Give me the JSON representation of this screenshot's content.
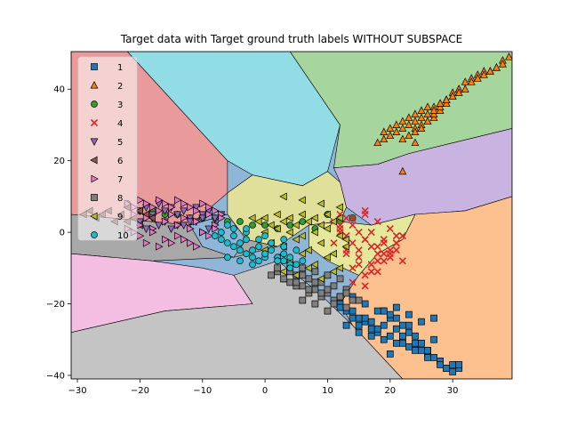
{
  "chart_data": {
    "type": "scatter",
    "title": "Target data with Target ground truth labels WITHOUT SUBSPACE",
    "xlabel": "",
    "ylabel": "",
    "xlim": [
      -31,
      39.5
    ],
    "ylim": [
      -41,
      50.5
    ],
    "xticks": [
      -30,
      -20,
      -10,
      0,
      10,
      20,
      30
    ],
    "yticks": [
      -40,
      -20,
      0,
      20,
      40
    ],
    "xtick_labels": [
      "−30",
      "−20",
      "−10",
      "0",
      "10",
      "20",
      "30"
    ],
    "ytick_labels": [
      "−40",
      "−20",
      "0",
      "20",
      "40"
    ],
    "grid": false,
    "legend_placement": "top-left",
    "regions": [
      {
        "class": "1",
        "color": "#8fb6d6",
        "points": [
          [
            -31,
            50.5
          ],
          [
            39.5,
            50.5
          ],
          [
            39.5,
            -41
          ],
          [
            -31,
            -41
          ]
        ]
      },
      {
        "class": "1",
        "color": "#e99b9b",
        "points": [
          [
            -31,
            50.5
          ],
          [
            -22,
            50.5
          ],
          [
            -6,
            20
          ],
          [
            -6,
            11
          ],
          [
            -12,
            2
          ],
          [
            -31,
            5
          ]
        ]
      },
      {
        "class": "4",
        "color": "#92dce6",
        "points": [
          [
            -22,
            50.5
          ],
          [
            4,
            50.5
          ],
          [
            12,
            30
          ],
          [
            10,
            17
          ],
          [
            6,
            13
          ],
          [
            -2,
            16
          ],
          [
            -6,
            20
          ]
        ]
      },
      {
        "class": "2",
        "color": "#a6d59d",
        "points": [
          [
            4,
            50.5
          ],
          [
            39.5,
            50.5
          ],
          [
            39.5,
            29
          ],
          [
            23,
            22
          ],
          [
            18,
            19
          ],
          [
            11,
            18
          ],
          [
            12,
            30
          ]
        ]
      },
      {
        "class": "9",
        "color": "#c9b3e0",
        "points": [
          [
            11,
            18
          ],
          [
            18,
            19
          ],
          [
            23,
            22
          ],
          [
            39.5,
            29
          ],
          [
            39.5,
            10
          ],
          [
            32,
            6
          ],
          [
            24,
            5
          ],
          [
            17,
            2
          ],
          [
            13,
            7
          ],
          [
            12,
            14
          ]
        ]
      },
      {
        "class": "5",
        "color": "#e0e09a",
        "points": [
          [
            -6,
            11
          ],
          [
            -2,
            16
          ],
          [
            6,
            13
          ],
          [
            10,
            17
          ],
          [
            12,
            14
          ],
          [
            13,
            7
          ],
          [
            12,
            3
          ],
          [
            7,
            2
          ],
          [
            2,
            -4
          ],
          [
            -3,
            -2
          ],
          [
            -6,
            5
          ]
        ]
      },
      {
        "class": "6",
        "color": "#a8a8a8",
        "points": [
          [
            -31,
            5
          ],
          [
            -12,
            2
          ],
          [
            -6,
            5
          ],
          [
            -3,
            -2
          ],
          [
            2,
            -4
          ],
          [
            -5,
            -7
          ],
          [
            -18,
            -8
          ],
          [
            -31,
            -6
          ]
        ]
      },
      {
        "class": "7",
        "color": "#f4bde2",
        "points": [
          [
            -31,
            -6
          ],
          [
            -18,
            -8
          ],
          [
            -10,
            -10
          ],
          [
            -5,
            -12
          ],
          [
            -2,
            -20
          ],
          [
            -16,
            -22
          ],
          [
            -31,
            -28
          ]
        ]
      },
      {
        "class": "8",
        "color": "#c4c4c4",
        "points": [
          [
            -31,
            -28
          ],
          [
            -16,
            -22
          ],
          [
            -2,
            -20
          ],
          [
            -5,
            -12
          ],
          [
            2,
            -8
          ],
          [
            8,
            -16
          ],
          [
            14,
            -26
          ],
          [
            22,
            -41
          ],
          [
            -31,
            -41
          ]
        ]
      },
      {
        "class": "3",
        "color": "#fdc08f",
        "points": [
          [
            39.5,
            10
          ],
          [
            32,
            6
          ],
          [
            24,
            5
          ],
          [
            22,
            -2
          ],
          [
            18,
            -6
          ],
          [
            15,
            -12
          ],
          [
            12,
            -20
          ],
          [
            14,
            -26
          ],
          [
            22,
            -41
          ],
          [
            39.5,
            -41
          ]
        ]
      },
      {
        "class": "4",
        "color": "#e5e79b",
        "points": [
          [
            12,
            3
          ],
          [
            17,
            2
          ],
          [
            24,
            5
          ],
          [
            22,
            -2
          ],
          [
            18,
            -6
          ],
          [
            15,
            -12
          ],
          [
            10,
            -8
          ],
          [
            7,
            -4
          ],
          [
            7,
            2
          ]
        ]
      },
      {
        "class": "9",
        "color": "#8fb6d6",
        "points": [
          [
            -12,
            2
          ],
          [
            -6,
            5
          ],
          [
            -3,
            -2
          ],
          [
            -5,
            -7
          ],
          [
            -10,
            -4
          ]
        ]
      }
    ],
    "series": [
      {
        "name": "1",
        "marker": "square",
        "color": "#1f77b4",
        "x": [
          12,
          13,
          14,
          15,
          16,
          17,
          18,
          19,
          20,
          21,
          22,
          23,
          24,
          25,
          26,
          27,
          28,
          29,
          30,
          31,
          14,
          16,
          18,
          20,
          22,
          24,
          26,
          28,
          15,
          17,
          19,
          21,
          23,
          25,
          27,
          13,
          15,
          17,
          19,
          21,
          23,
          25,
          12,
          14,
          16,
          18,
          20,
          22,
          24,
          26,
          28,
          30,
          19,
          21,
          23,
          27,
          29,
          31,
          26,
          24,
          22,
          20
        ],
        "y": [
          -20,
          -22,
          -24,
          -26,
          -25,
          -27,
          -28,
          -26,
          -24,
          -27,
          -30,
          -28,
          -32,
          -31,
          -33,
          -35,
          -36,
          -38,
          -37,
          -38,
          -18,
          -20,
          -22,
          -23,
          -26,
          -29,
          -34,
          -36,
          -24,
          -25,
          -22,
          -21,
          -23,
          -25,
          -30,
          -26,
          -28,
          -29,
          -30,
          -31,
          -32,
          -33,
          -21,
          -22,
          -24,
          -27,
          -29,
          -31,
          -33,
          -35,
          -37,
          -39,
          -22,
          -24,
          -26,
          -24,
          -38,
          -37,
          -33,
          -31,
          -29,
          -34
        ]
      },
      {
        "name": "2",
        "marker": "triangle-up",
        "color": "#ff7f0e",
        "x": [
          19,
          20,
          21,
          22,
          23,
          24,
          25,
          26,
          27,
          28,
          29,
          30,
          31,
          32,
          33,
          34,
          35,
          36,
          37,
          38,
          22,
          23,
          24,
          25,
          26,
          27,
          28,
          29,
          24,
          25,
          26,
          27,
          28,
          29,
          30,
          31,
          18,
          19,
          20,
          21,
          22,
          23,
          24,
          25,
          26,
          27,
          28,
          29,
          30,
          31,
          32,
          33,
          34,
          35,
          36,
          37,
          38,
          39,
          22,
          24
        ],
        "y": [
          28,
          29,
          30,
          31,
          32,
          33,
          34,
          35,
          35,
          36,
          37,
          38,
          40,
          42,
          43,
          44,
          45,
          45,
          46,
          48,
          26,
          27,
          29,
          30,
          31,
          32,
          34,
          36,
          28,
          29,
          31,
          33,
          35,
          37,
          39,
          40,
          25,
          26,
          27,
          28,
          29,
          30,
          31,
          32,
          33,
          34,
          36,
          37,
          38,
          39,
          40,
          42,
          43,
          44,
          45,
          46,
          47,
          49,
          17,
          25
        ]
      },
      {
        "name": "3",
        "marker": "circle",
        "color": "#2ca02c",
        "x": [
          -22,
          -18,
          -14,
          -10,
          -6,
          -2,
          2,
          6,
          10,
          14,
          -20,
          -16,
          -12,
          -8,
          -4,
          0,
          4,
          8,
          12
        ],
        "y": [
          8,
          6,
          5,
          4,
          3,
          2,
          1,
          3,
          5,
          4,
          6,
          5,
          4,
          4,
          3,
          2,
          2,
          1,
          3
        ]
      },
      {
        "name": "4",
        "marker": "x",
        "color": "#d62728",
        "x": [
          11,
          12,
          13,
          14,
          15,
          16,
          17,
          18,
          19,
          20,
          21,
          22,
          12,
          13,
          14,
          15,
          16,
          17,
          18,
          19,
          20,
          21,
          11,
          13,
          15,
          17,
          19,
          21,
          14,
          16,
          18,
          20,
          12,
          14,
          16,
          18,
          20,
          22,
          13,
          15,
          17,
          19,
          21,
          14,
          16,
          18,
          12,
          16
        ],
        "y": [
          3,
          1,
          -1,
          -3,
          -5,
          -2,
          0,
          -4,
          -6,
          -7,
          -3,
          -8,
          5,
          4,
          2,
          0,
          -2,
          -4,
          -6,
          -8,
          -5,
          -3,
          -3,
          -5,
          -7,
          -9,
          -3,
          -1,
          -10,
          -12,
          -8,
          -6,
          2,
          4,
          6,
          3,
          1,
          -1,
          -6,
          -9,
          -11,
          -2,
          -5,
          -14,
          -15,
          -11,
          0,
          5
        ]
      },
      {
        "name": "5",
        "marker": "triangle-down",
        "color": "#9467bd",
        "x": [
          -20,
          -19,
          -18,
          -17,
          -16,
          -15,
          -14,
          -13,
          -12,
          -11,
          -10,
          -9,
          -8,
          -7,
          -20,
          -18,
          -16,
          -14,
          -12,
          -10,
          -8,
          -19,
          -17,
          -15,
          -13,
          -11,
          -9
        ],
        "y": [
          6,
          7,
          5,
          8,
          6,
          7,
          5,
          6,
          4,
          7,
          5,
          6,
          4,
          5,
          3,
          4,
          3,
          2,
          3,
          4,
          2,
          1,
          2,
          1,
          2,
          3,
          1
        ]
      },
      {
        "name": "6",
        "marker": "triangle-left",
        "color": "#8c564b",
        "x": [
          -29,
          -27,
          -25,
          -23,
          -22,
          -21,
          -20,
          -19,
          -18,
          -24,
          -26,
          -28,
          -22,
          -20
        ],
        "y": [
          5,
          4,
          6,
          5,
          3,
          4,
          6,
          5,
          4,
          3,
          5,
          6,
          7,
          2
        ]
      },
      {
        "name": "7",
        "marker": "triangle-right",
        "color": "#e377c2",
        "x": [
          -22,
          -21,
          -20,
          -19,
          -18,
          -17,
          -16,
          -15,
          -14,
          -13,
          -12,
          -11,
          -10,
          -9,
          -8,
          -7,
          -21,
          -19,
          -17,
          -15,
          -13,
          -11,
          -9,
          -7,
          -20,
          -18,
          -16,
          -14,
          -12,
          -10,
          -8,
          -22,
          -20,
          -18,
          -16,
          -14,
          -12,
          -10,
          -17,
          -15,
          -13,
          -11,
          -19,
          -21,
          -9,
          -8
        ],
        "y": [
          8,
          7,
          9,
          8,
          7,
          9,
          8,
          7,
          9,
          8,
          7,
          6,
          8,
          7,
          6,
          5,
          5,
          4,
          6,
          5,
          4,
          3,
          5,
          4,
          2,
          1,
          3,
          2,
          1,
          0,
          2,
          1,
          -1,
          0,
          -2,
          -1,
          -3,
          0,
          -4,
          -3,
          -2,
          -4,
          -3,
          0,
          -1,
          1
        ]
      },
      {
        "name": "8",
        "marker": "square",
        "color": "#7f7f7f",
        "x": [
          1,
          2,
          3,
          4,
          5,
          6,
          7,
          8,
          9,
          10,
          11,
          12,
          13,
          14,
          2,
          4,
          6,
          8,
          10,
          12,
          3,
          5,
          7,
          9,
          11,
          13,
          4,
          6,
          8,
          10,
          12,
          5,
          7,
          9,
          11,
          13,
          15,
          6,
          8,
          10
        ],
        "y": [
          -12,
          -11,
          -13,
          -14,
          -12,
          -15,
          -13,
          -16,
          -14,
          -17,
          -15,
          -18,
          -16,
          -19,
          -10,
          -11,
          -12,
          -14,
          -16,
          -18,
          -13,
          -15,
          -17,
          -18,
          -19,
          -17,
          -9,
          -10,
          -11,
          -12,
          -13,
          -14,
          -16,
          -17,
          -20,
          -21,
          -19,
          -19,
          -20,
          -22
        ]
      },
      {
        "name": "9",
        "marker": "triangle-left",
        "color": "#bcbd22",
        "x": [
          -1,
          0,
          1,
          2,
          3,
          4,
          5,
          6,
          7,
          8,
          9,
          10,
          11,
          12,
          0,
          2,
          4,
          6,
          8,
          10,
          12,
          1,
          3,
          5,
          7,
          9,
          11,
          13,
          2,
          4,
          6,
          8,
          10,
          12,
          3,
          5,
          7,
          9,
          11,
          3,
          6,
          9,
          12,
          13,
          -2,
          0
        ],
        "y": [
          3,
          4,
          2,
          5,
          3,
          4,
          2,
          5,
          3,
          4,
          2,
          5,
          3,
          4,
          0,
          1,
          0,
          -1,
          0,
          1,
          -1,
          -3,
          -4,
          -2,
          -5,
          -3,
          -6,
          -4,
          -7,
          -8,
          -6,
          -9,
          -7,
          -10,
          -11,
          -12,
          -10,
          -13,
          -11,
          10,
          9,
          8,
          7,
          -2,
          4,
          -5
        ]
      },
      {
        "name": "10",
        "marker": "circle",
        "color": "#17becf",
        "x": [
          -8,
          -7,
          -6,
          -5,
          -4,
          -3,
          -2,
          -1,
          0,
          1,
          2,
          3,
          4,
          5,
          -7,
          -5,
          -3,
          -1,
          1,
          3,
          5,
          -6,
          -4,
          -2,
          0,
          2,
          4,
          -5,
          -3,
          -1,
          1,
          3,
          -4,
          -2,
          0,
          2,
          4,
          6,
          -6,
          -3,
          0,
          3
        ],
        "y": [
          -1,
          -2,
          -3,
          -4,
          -5,
          -6,
          -7,
          -8,
          -6,
          -5,
          -7,
          -8,
          -7,
          -9,
          0,
          -1,
          -2,
          -4,
          -3,
          -6,
          -5,
          -7,
          -8,
          -9,
          -7,
          -8,
          -9,
          1,
          0,
          -2,
          -3,
          -4,
          -3,
          -5,
          -6,
          -8,
          -10,
          -8,
          2,
          1,
          -1,
          -2
        ]
      }
    ]
  }
}
